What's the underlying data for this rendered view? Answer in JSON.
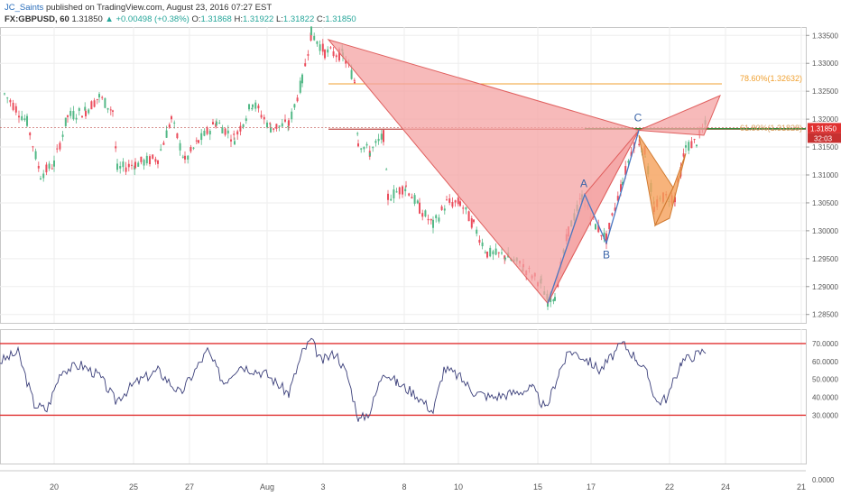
{
  "header": {
    "author": "JC_Saints",
    "published": "published on TradingView.com, August 23, 2016 07:27 EST",
    "symbol": "FX:GBPUSD, 60",
    "last": "1.31850",
    "change": "▲ +0.00498 (+0.38%)",
    "o_label": "O:",
    "o": "1.31868",
    "h_label": "H:",
    "h": "1.31922",
    "l_label": "L:",
    "l": "1.31822",
    "c_label": "C:",
    "c": "1.31850"
  },
  "colors": {
    "pattern_fill": "#f4a3a3",
    "pattern_stroke": "#e0605f",
    "cd_fill": "#f5a05a",
    "xa_leg": "#4a78c2",
    "fib_786": "#f0a030",
    "fib_618": "#d8a060",
    "support_line": "#c0504d",
    "rsi_line": "#3b3f7a",
    "rsi_bounds": "#e03030",
    "candle_up": "#53b987",
    "candle_down": "#eb4d5c",
    "price_badge": "#e03030"
  },
  "labels": {
    "fib_786": "78.60%(1.32632)",
    "fib_618": "61.80%(1.31828)",
    "point_a": "A",
    "point_b": "B",
    "point_c": "C",
    "current_price": "1.31850",
    "countdown": "32:03"
  },
  "chart_data": [
    {
      "type": "candlestick",
      "name": "price",
      "ylim": [
        1.2835,
        1.3365
      ],
      "y_ticks": [
        "1.33500",
        "1.33000",
        "1.32500",
        "1.32000",
        "1.31500",
        "1.31000",
        "1.30500",
        "1.30000",
        "1.29500",
        "1.29000",
        "1.28500"
      ],
      "x_ticks": [
        "20",
        "25",
        "27",
        "Aug",
        "3",
        "8",
        "10",
        "15",
        "17",
        "22",
        "24",
        "21"
      ],
      "pattern": {
        "X": [
          "Aug 3",
          1.337
        ],
        "A": [
          "Aug 16",
          1.3065
        ],
        "B": [
          "Aug 17",
          1.2978
        ],
        "C": [
          "Aug 19",
          1.318
        ],
        "low": [
          "Aug 15",
          1.287
        ],
        "D_786": 1.32632
      },
      "fib_levels": [
        {
          "label": "78.60%",
          "value": 1.32632
        },
        {
          "label": "61.80%",
          "value": 1.31828
        }
      ],
      "current_price": 1.3185
    },
    {
      "type": "line",
      "name": "RSI",
      "ylim": [
        0,
        75
      ],
      "y_ticks": [
        "70.0000",
        "60.0000",
        "50.0000",
        "40.0000",
        "30.0000",
        "0.0000"
      ],
      "bounds": [
        70,
        30
      ]
    }
  ]
}
